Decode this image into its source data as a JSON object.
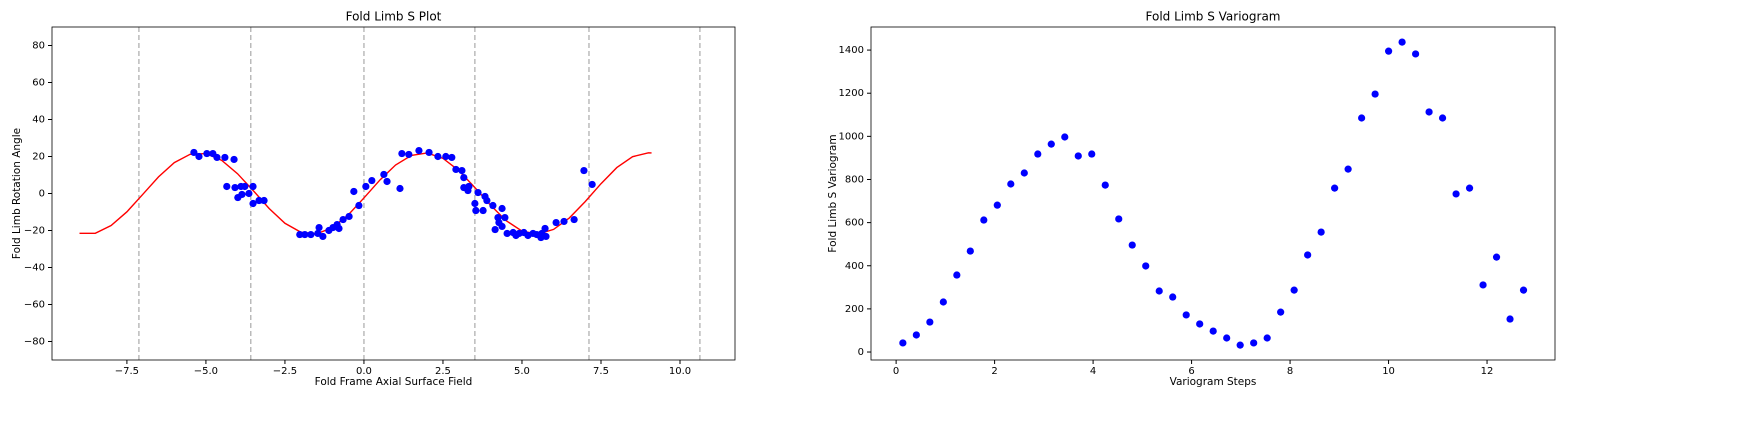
{
  "chart_data": [
    {
      "type": "scatter",
      "title": "Fold Limb S Plot",
      "xlabel": "Fold Frame Axial Surface Field",
      "ylabel": "Fold Limb Rotation Angle",
      "xlim": [
        -9.87,
        11.74
      ],
      "ylim": [
        -90,
        90
      ],
      "xticks": [
        {
          "value": -7.5,
          "label": "−7.5"
        },
        {
          "value": -5,
          "label": "−5.0"
        },
        {
          "value": -2.5,
          "label": "−2.5"
        },
        {
          "value": 0,
          "label": "0.0"
        },
        2.5,
        {
          "value": 5,
          "label": "5.0"
        },
        7.5,
        {
          "value": 10,
          "label": "10.0"
        }
      ],
      "yticks": [
        {
          "value": -80,
          "label": "−80"
        },
        {
          "value": -60,
          "label": "−60"
        },
        {
          "value": -40,
          "label": "−40"
        },
        {
          "value": -20,
          "label": "−20"
        },
        0,
        20,
        40,
        60,
        80
      ],
      "vlines": [
        -7.12,
        -3.58,
        0,
        3.51,
        7.12,
        10.63
      ],
      "vline_color": "#aaaaaa",
      "series": [
        {
          "type": "line",
          "color": "#ff0000",
          "x": [
            -9,
            -8.5,
            -8,
            -7.5,
            -7,
            -6.5,
            -6,
            -5.5,
            -5,
            -4.5,
            -4,
            -3.5,
            -3,
            -2.5,
            -2,
            -1.5,
            -1,
            -0.5,
            0,
            0.5,
            1,
            1.5,
            2,
            2.5,
            3,
            3.5,
            4,
            4.5,
            5,
            5.5,
            6,
            6.5,
            7,
            7.5,
            8,
            8.5,
            9,
            9.1
          ],
          "values": [
            -21.5,
            -21.5,
            -17.3,
            -9.9,
            -0.5,
            9.0,
            16.7,
            21.2,
            21.6,
            17.9,
            10.7,
            1.5,
            -8.1,
            -16.1,
            -20.9,
            -21.8,
            -18.5,
            -11.6,
            -2.4,
            7.2,
            15.4,
            20.6,
            21.9,
            19.0,
            12.4,
            3.4,
            -6.2,
            -14.7,
            -20.3,
            -22.0,
            -19.4,
            -13.2,
            -4.4,
            5.3,
            14.0,
            19.9,
            22.0,
            21.9
          ]
        },
        {
          "type": "scatter",
          "color": "#0000ff",
          "x": [
            -5.38,
            -5.22,
            -4.97,
            -4.78,
            -4.65,
            -4.4,
            -4.11,
            -4.34,
            -4.08,
            -3.89,
            -3.77,
            -3.99,
            -3.86,
            -3.64,
            -3.51,
            -3.51,
            -3.32,
            -3.16,
            -2.03,
            -1.87,
            -1.68,
            -1.46,
            -1.42,
            -1.3,
            -1.11,
            -0.98,
            -0.85,
            -0.79,
            -0.66,
            -0.47,
            -0.32,
            -0.16,
            0.06,
            0.25,
            0.63,
            0.73,
            1.14,
            1.2,
            1.42,
            1.74,
            2.06,
            2.34,
            2.59,
            2.78,
            2.91,
            3.1,
            3.16,
            3.16,
            3.29,
            3.32,
            3.51,
            3.54,
            3.61,
            3.77,
            3.83,
            3.89,
            4.08,
            4.15,
            4.24,
            4.27,
            4.37,
            4.37,
            4.46,
            4.53,
            4.72,
            4.81,
            4.91,
            5.06,
            5.19,
            5.35,
            5.47,
            5.63,
            5.6,
            5.76,
            5.73,
            6.08,
            6.33,
            6.65,
            6.96,
            7.22
          ],
          "values": [
            22.2,
            20,
            21.6,
            21.6,
            19.5,
            19.5,
            18.4,
            3.8,
            3.2,
            3.8,
            3.8,
            -2.2,
            -0.5,
            0,
            3.8,
            -5.4,
            -3.8,
            -3.8,
            -22.2,
            -22.2,
            -22.2,
            -21.6,
            -18.4,
            -23.2,
            -20,
            -18.4,
            -16.8,
            -18.9,
            -14.1,
            -12.4,
            1.1,
            -6.5,
            3.8,
            7,
            10.3,
            6.5,
            2.7,
            21.6,
            21.1,
            23.2,
            22.2,
            20,
            20,
            19.5,
            13,
            12.4,
            8.6,
            3.2,
            1.6,
            3.8,
            -5.4,
            -9.2,
            0.5,
            -9.2,
            -1.6,
            -3.8,
            -6.5,
            -19.5,
            -13,
            -15.7,
            -17.8,
            -8.1,
            -13,
            -21.6,
            -21.1,
            -22.7,
            -21.6,
            -21.1,
            -22.7,
            -21.6,
            -22.2,
            -21.6,
            -23.8,
            -23.2,
            -18.9,
            -15.7,
            -15.1,
            -14.1,
            12.4,
            4.9
          ]
        }
      ]
    },
    {
      "type": "scatter",
      "title": "Fold Limb S Variogram",
      "xlabel": "Variogram Steps",
      "ylabel": "Fold Limb S Variogram",
      "xlim": [
        -0.51,
        13.38
      ],
      "ylim": [
        -37,
        1507
      ],
      "xticks": [
        0,
        2,
        4,
        6,
        8,
        10,
        12
      ],
      "yticks": [
        0,
        200,
        400,
        600,
        800,
        1000,
        1200,
        1400
      ],
      "series": [
        {
          "type": "scatter",
          "color": "#0000ff",
          "x": [
            0.137,
            0.411,
            0.685,
            0.959,
            1.233,
            1.507,
            1.781,
            2.055,
            2.329,
            2.603,
            2.877,
            3.151,
            3.425,
            3.699,
            3.973,
            4.247,
            4.521,
            4.795,
            5.069,
            5.343,
            5.617,
            5.891,
            6.165,
            6.439,
            6.713,
            6.987,
            7.261,
            7.535,
            7.809,
            8.083,
            8.357,
            8.631,
            8.905,
            9.179,
            9.453,
            9.727,
            10.001,
            10.275,
            10.549,
            10.823,
            11.097,
            11.371,
            11.645,
            11.919,
            12.193,
            12.467,
            12.741
          ],
          "values": [
            42,
            79,
            139,
            232,
            357,
            468,
            612,
            681,
            779,
            830,
            918,
            964,
            997,
            909,
            918,
            774,
            617,
            496,
            399,
            283,
            255,
            172,
            130,
            97,
            65,
            32,
            42,
            65,
            185,
            287,
            450,
            556,
            760,
            848,
            1085,
            1196,
            1395,
            1437,
            1382,
            1113,
            1085,
            733,
            760,
            311,
            440,
            153,
            287
          ]
        }
      ]
    }
  ]
}
